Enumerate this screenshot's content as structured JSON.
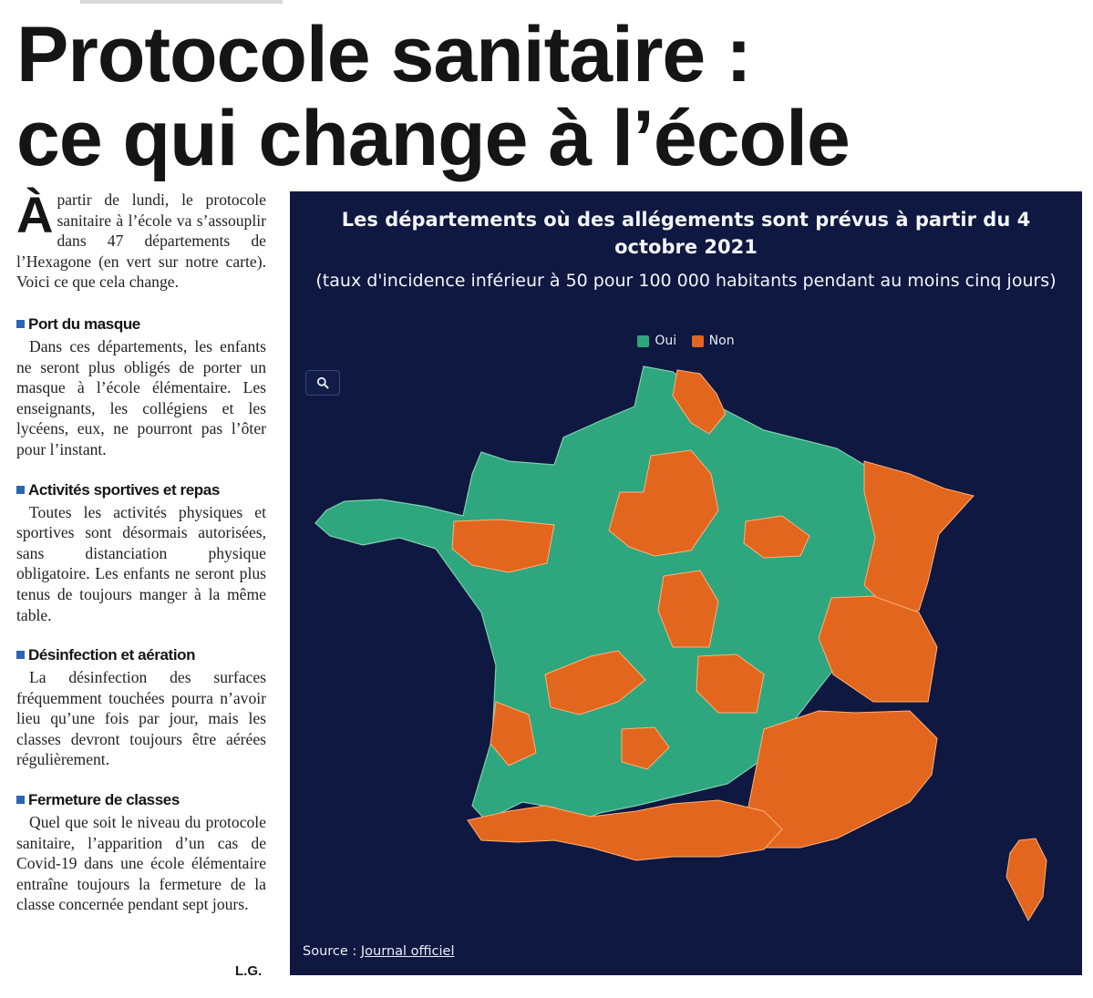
{
  "headline": {
    "line1": "Protocole sanitaire :",
    "line2": "ce qui change à l’école"
  },
  "article": {
    "dropcap": "À",
    "lead": "partir de lundi, le protocole sanitaire à l’école va s’assouplir dans 47 départements de l’Hexagone (en vert sur notre carte). Voici ce que cela change.",
    "sections": [
      {
        "title": "Port du masque",
        "body": "Dans ces départements, les enfants ne seront plus obligés de porter un masque à l’école élémentaire. Les enseignants, les collégiens et les lycéens, eux, ne pourront pas l’ôter pour l’instant."
      },
      {
        "title": "Activités sportives et repas",
        "body": "Toutes les activités physiques et sportives sont désormais autorisées, sans distanciation physique obligatoire. Les enfants ne seront plus tenus de toujours manger à la même table."
      },
      {
        "title": "Désinfection et aération",
        "body": "La désinfection des surfaces fréquemment touchées pourra n’avoir lieu qu’une fois par jour, mais les classes devront toujours être aérées régulièrement."
      },
      {
        "title": "Fermeture de classes",
        "body": "Quel que soit le niveau du protocole sanitaire, l’apparition d’un cas de Covid-19 dans une école élémentaire entraîne toujours la fermeture de la classe concernée pendant sept jours."
      }
    ],
    "signature": "L.G."
  },
  "map": {
    "title": "Les départements où des allégements sont prévus à partir du 4 octobre 2021",
    "subtitle": "(taux d'incidence inférieur à 50 pour 100 000 habitants pendant au moins cinq jours)",
    "legend": [
      {
        "label": "Oui",
        "color": "#2ea67e"
      },
      {
        "label": "Non",
        "color": "#e2661d"
      }
    ],
    "zoom_icon": "search-icon",
    "source_prefix": "Source : ",
    "source_link": "Journal officiel",
    "background": "#0f1841"
  },
  "colors": {
    "accent_bullet": "#2a66b3",
    "oui": "#2ea67e",
    "non": "#e2661d",
    "border": "#7fcfb0"
  }
}
